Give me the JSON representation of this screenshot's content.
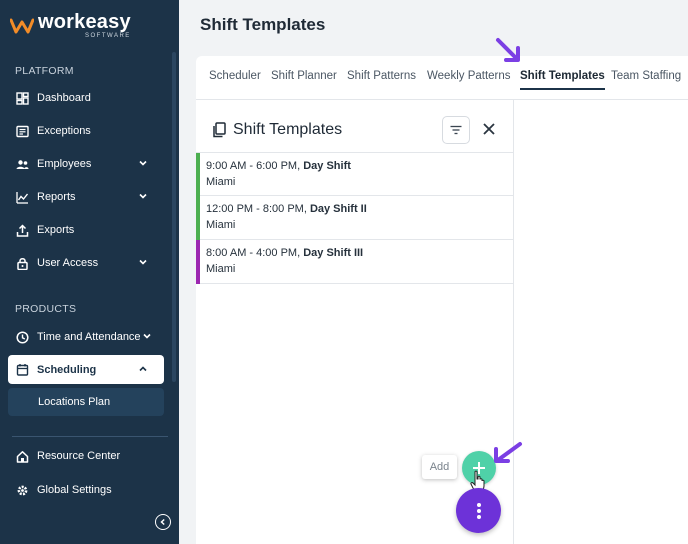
{
  "app": {
    "logo_name": "workeasy",
    "logo_sub": "SOFTWARE"
  },
  "sidebar": {
    "platform_label": "PLATFORM",
    "products_label": "PRODUCTS",
    "items": [
      {
        "label": "Dashboard",
        "icon": "dashboard-icon"
      },
      {
        "label": "Exceptions",
        "icon": "exceptions-icon"
      },
      {
        "label": "Employees",
        "icon": "employees-icon"
      },
      {
        "label": "Reports",
        "icon": "reports-icon"
      },
      {
        "label": "Exports",
        "icon": "exports-icon"
      },
      {
        "label": "User Access",
        "icon": "lock-icon"
      },
      {
        "label": "Time and Attendance",
        "icon": "clock-icon"
      },
      {
        "label": "Scheduling",
        "icon": "calendar-icon"
      },
      {
        "label": "Locations Plan"
      },
      {
        "label": "Resource Center",
        "icon": "home-icon"
      },
      {
        "label": "Global Settings",
        "icon": "gear-icon"
      }
    ]
  },
  "header": {
    "title": "Shift Templates"
  },
  "tabs": [
    "Scheduler",
    "Shift Planner",
    "Shift Patterns",
    "Weekly Patterns",
    "Shift Templates",
    "Team Staffing"
  ],
  "panel": {
    "title": "Shift Templates",
    "shifts": [
      {
        "time": "9:00 AM - 6:00 PM, ",
        "name": "Day Shift",
        "location": "Miami",
        "color": "#4caf50"
      },
      {
        "time": "12:00 PM - 8:00 PM, ",
        "name": "Day Shift II",
        "location": "Miami",
        "color": "#4caf50"
      },
      {
        "time": "8:00 AM - 4:00 PM, ",
        "name": "Day Shift III",
        "location": "Miami",
        "color": "#9c27b0"
      }
    ]
  },
  "fab": {
    "tooltip": "Add",
    "add_color": "#4fd1a8",
    "menu_color": "#6d32d8"
  },
  "colors": {
    "sidebar_bg": "#1c3348",
    "annotation_arrow": "#7b3fe4"
  }
}
